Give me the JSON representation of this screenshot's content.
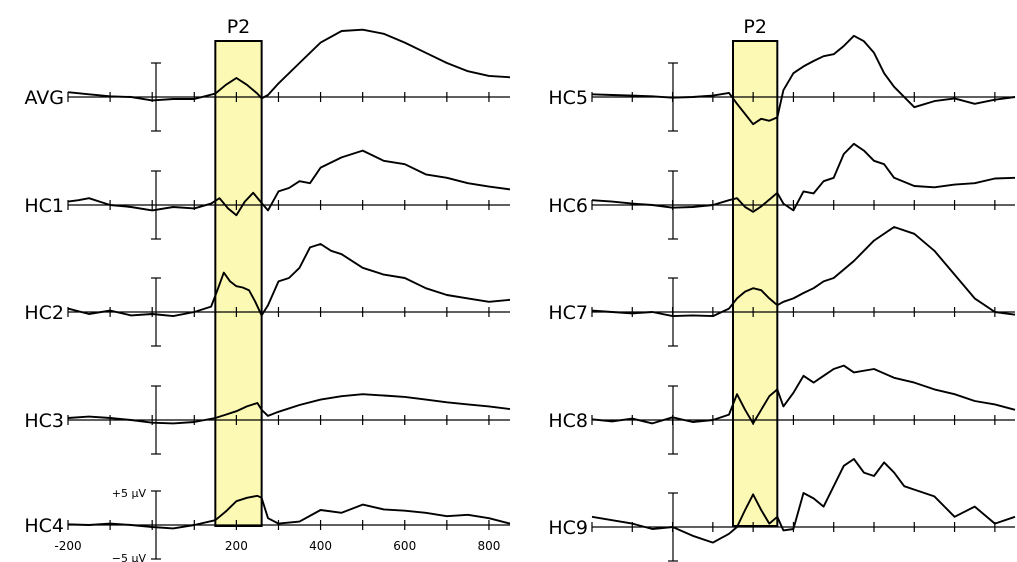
{
  "chart_data": {
    "type": "line",
    "window_label": "P2",
    "window_ms": [
      150,
      260
    ],
    "window_color": "#fcf9b4",
    "x_domain_ms": [
      -200,
      850
    ],
    "xticks": [
      -200,
      200,
      400,
      600,
      800
    ],
    "tick_marks_ms": [
      -200,
      -100,
      0,
      100,
      200,
      300,
      400,
      500,
      600,
      700,
      800
    ],
    "scale_labels": [
      "+5 µV",
      "−5 µV"
    ],
    "panels": [
      {
        "name": "left",
        "series": [
          {
            "name": "AVG",
            "x": [
              -200,
              -150,
              -100,
              -50,
              0,
              50,
              100,
              150,
              175,
              200,
              225,
              250,
              260,
              275,
              300,
              350,
              400,
              450,
              500,
              550,
              600,
              650,
              700,
              750,
              800,
              850
            ],
            "y": [
              0.7,
              0.4,
              0.1,
              0,
              -0.5,
              -0.3,
              -0.3,
              0.5,
              1.8,
              2.8,
              1.8,
              0.5,
              -0.2,
              0.3,
              2.0,
              5.0,
              8.0,
              9.7,
              9.9,
              9.3,
              8.0,
              6.5,
              5.0,
              3.8,
              3.1,
              2.9
            ]
          },
          {
            "name": "HC1",
            "x": [
              -200,
              -175,
              -150,
              -125,
              -100,
              -50,
              0,
              50,
              100,
              140,
              160,
              180,
              200,
              220,
              240,
              260,
              275,
              300,
              325,
              350,
              375,
              400,
              450,
              500,
              550,
              600,
              650,
              700,
              750,
              800,
              850
            ],
            "y": [
              0.5,
              0.7,
              1.0,
              0.5,
              0,
              -0.3,
              -0.8,
              -0.3,
              -0.5,
              0.2,
              1.0,
              -0.5,
              -1.5,
              0.5,
              1.8,
              0.3,
              -0.8,
              2.0,
              2.5,
              3.5,
              3.2,
              5.5,
              7.0,
              8.0,
              6.5,
              6.0,
              4.5,
              4.0,
              3.2,
              2.7,
              2.3
            ]
          },
          {
            "name": "HC2",
            "x": [
              -200,
              -150,
              -100,
              -50,
              0,
              50,
              100,
              140,
              155,
              170,
              185,
              200,
              215,
              230,
              245,
              260,
              275,
              300,
              325,
              350,
              375,
              400,
              425,
              450,
              500,
              550,
              600,
              650,
              700,
              750,
              800,
              850
            ],
            "y": [
              0.5,
              -0.3,
              0.2,
              -0.5,
              -0.3,
              -0.6,
              0,
              0.8,
              3.2,
              5.8,
              4.5,
              3.8,
              3.6,
              3.2,
              1.5,
              -0.5,
              1.0,
              4.5,
              5.0,
              6.5,
              9.5,
              10.0,
              9.0,
              8.5,
              6.5,
              5.5,
              5.0,
              3.5,
              2.5,
              2.0,
              1.5,
              1.8
            ]
          },
          {
            "name": "HC3",
            "x": [
              -200,
              -150,
              -100,
              -50,
              0,
              50,
              100,
              150,
              175,
              200,
              225,
              250,
              260,
              275,
              300,
              350,
              400,
              450,
              500,
              550,
              600,
              650,
              700,
              750,
              800,
              850
            ],
            "y": [
              0.3,
              0.5,
              0.3,
              0,
              -0.4,
              -0.5,
              -0.3,
              0.3,
              0.8,
              1.3,
              2.0,
              2.5,
              1.5,
              0.6,
              1.2,
              2.2,
              3.0,
              3.5,
              3.8,
              3.6,
              3.4,
              3.0,
              2.6,
              2.3,
              2.0,
              1.6
            ]
          },
          {
            "name": "HC4",
            "x": [
              -200,
              -150,
              -100,
              -50,
              0,
              50,
              100,
              150,
              175,
              200,
              225,
              250,
              260,
              275,
              300,
              350,
              400,
              450,
              500,
              550,
              600,
              650,
              700,
              750,
              800,
              850
            ],
            "y": [
              0.1,
              0,
              0.2,
              0,
              -0.3,
              -0.5,
              0,
              0.7,
              2.0,
              3.5,
              4.0,
              4.3,
              4.0,
              1.0,
              0.2,
              0.5,
              2.2,
              1.8,
              3.0,
              2.3,
              2.1,
              1.8,
              1.3,
              1.5,
              1.0,
              0.2
            ]
          }
        ]
      },
      {
        "name": "right",
        "series": [
          {
            "name": "HC5",
            "x": [
              -200,
              -150,
              -100,
              -50,
              0,
              50,
              100,
              140,
              160,
              180,
              200,
              220,
              240,
              260,
              275,
              300,
              325,
              350,
              375,
              400,
              425,
              450,
              475,
              500,
              525,
              550,
              600,
              650,
              700,
              750,
              800,
              850
            ],
            "y": [
              0.4,
              0.3,
              0.2,
              0.1,
              -0.1,
              0,
              0.2,
              0.6,
              -1.0,
              -2.5,
              -4.0,
              -3.2,
              -3.5,
              -3.0,
              1.0,
              3.5,
              4.5,
              5.3,
              6.0,
              6.3,
              7.5,
              9.0,
              8.2,
              6.5,
              3.5,
              1.5,
              -1.5,
              -0.6,
              -0.2,
              -1.0,
              -0.4,
              0
            ]
          },
          {
            "name": "HC6",
            "x": [
              -200,
              -150,
              -100,
              -50,
              0,
              50,
              100,
              140,
              160,
              180,
              200,
              220,
              240,
              260,
              275,
              300,
              325,
              350,
              375,
              400,
              425,
              450,
              475,
              500,
              525,
              550,
              600,
              650,
              700,
              750,
              800,
              850
            ],
            "y": [
              0.7,
              0.5,
              0.2,
              0,
              -0.4,
              -0.3,
              0,
              0.7,
              1.0,
              -0.3,
              -1.0,
              -0.2,
              0.8,
              1.8,
              0.2,
              -0.8,
              2.0,
              1.7,
              3.5,
              4.0,
              7.5,
              9.0,
              8.0,
              6.5,
              6.0,
              4.0,
              2.8,
              2.6,
              3.0,
              3.2,
              3.9,
              4.0
            ]
          },
          {
            "name": "HC7",
            "x": [
              -200,
              -150,
              -100,
              -50,
              0,
              50,
              100,
              140,
              160,
              180,
              200,
              220,
              240,
              260,
              275,
              300,
              325,
              350,
              375,
              400,
              450,
              500,
              550,
              600,
              650,
              700,
              750,
              800,
              850
            ],
            "y": [
              0.2,
              0,
              -0.2,
              0,
              -0.6,
              -0.5,
              -0.6,
              0.5,
              2.0,
              3.0,
              3.5,
              3.2,
              2.0,
              1.0,
              1.5,
              2.0,
              2.8,
              3.5,
              4.5,
              5.0,
              7.5,
              10.5,
              12.5,
              11.5,
              9.0,
              5.5,
              2.0,
              0,
              -0.4
            ]
          },
          {
            "name": "HC8",
            "x": [
              -200,
              -150,
              -100,
              -50,
              0,
              50,
              100,
              140,
              160,
              180,
              200,
              220,
              240,
              260,
              275,
              300,
              325,
              350,
              375,
              400,
              425,
              450,
              500,
              550,
              600,
              650,
              700,
              750,
              800,
              850
            ],
            "y": [
              0.1,
              -0.2,
              0.2,
              -0.5,
              0.4,
              -0.3,
              0,
              0.8,
              3.8,
              1.5,
              -0.5,
              1.5,
              3.5,
              4.5,
              2.0,
              4.0,
              6.5,
              5.5,
              6.5,
              7.5,
              8.0,
              7.0,
              7.5,
              6.2,
              5.5,
              4.5,
              3.8,
              2.8,
              2.3,
              1.5
            ]
          },
          {
            "name": "HC9",
            "x": [
              -200,
              -150,
              -100,
              -50,
              0,
              50,
              100,
              140,
              160,
              180,
              200,
              220,
              240,
              260,
              275,
              300,
              325,
              350,
              375,
              400,
              425,
              450,
              475,
              500,
              525,
              550,
              575,
              600,
              650,
              700,
              750,
              800,
              850
            ],
            "y": [
              1.5,
              1.0,
              0.5,
              -0.3,
              0,
              -1.3,
              -2.3,
              -1.0,
              0,
              2.5,
              4.8,
              2.5,
              0.5,
              1.5,
              -0.5,
              -0.3,
              5.0,
              4.2,
              3.0,
              6.0,
              9.0,
              10.0,
              8.0,
              7.5,
              9.5,
              8.0,
              6.0,
              5.5,
              4.5,
              1.5,
              3.0,
              0.5,
              1.5
            ]
          }
        ]
      }
    ]
  }
}
